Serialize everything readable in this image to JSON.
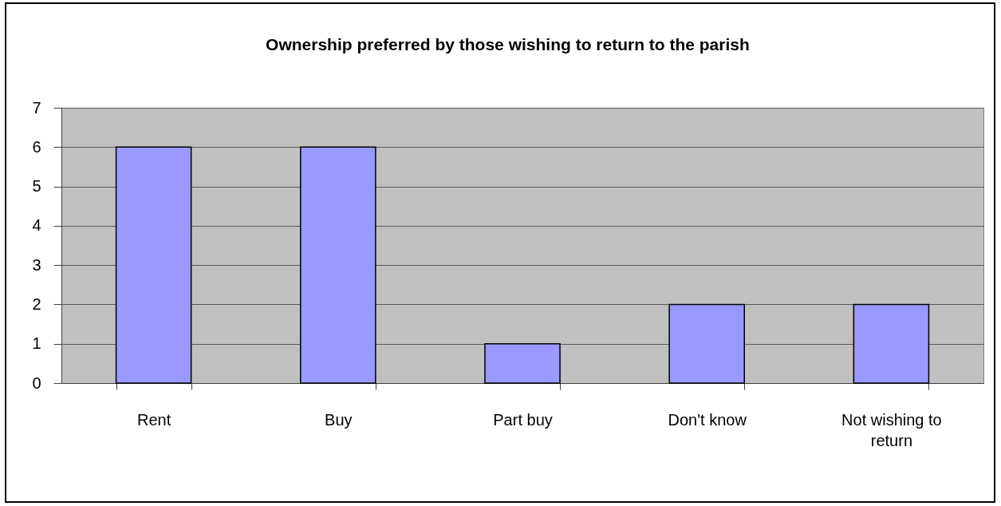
{
  "chart_data": {
    "type": "bar",
    "title": "Ownership preferred by those wishing to return to the parish",
    "categories": [
      "Rent",
      "Buy",
      "Part buy",
      "Don't know",
      "Not wishing to return"
    ],
    "values": [
      6,
      6,
      1,
      2,
      2
    ],
    "color": "#9999ff",
    "ylim": [
      0,
      7
    ],
    "yticks": [
      0,
      1,
      2,
      3,
      4,
      5,
      6,
      7
    ],
    "grid": "y"
  }
}
